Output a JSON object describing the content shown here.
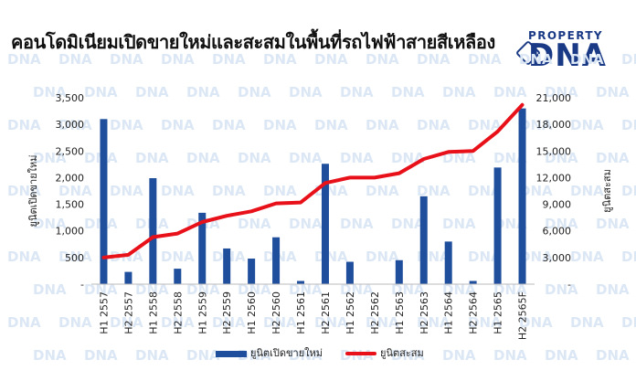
{
  "title": "คอนโดมิเนียมเปิดขายใหม่และสะสมในพื้นที่รถไฟฟ้าสายสีเหลือง",
  "logo": {
    "top": "PROPERTY",
    "main": "DNA"
  },
  "colors": {
    "bar": "#1f4e9c",
    "line": "#e8111a",
    "watermark": "#dce7f5"
  },
  "chart_data": {
    "type": "bar",
    "categories": [
      "H1 2557",
      "H2 2557",
      "H1 2558",
      "H2 2558",
      "H1 2559",
      "H2 2559",
      "H1 2560",
      "H2 2560",
      "H1 2561",
      "H2 2561",
      "H1 2562",
      "H2 2562",
      "H1 2563",
      "H2 2563",
      "H1 2564",
      "H2 2564",
      "H1 2565",
      "H2 2565F"
    ],
    "series": [
      {
        "name": "ยูนิตเปิดขายใหม่",
        "type": "bar",
        "axis": "left",
        "values": [
          3100,
          230,
          1990,
          290,
          1340,
          670,
          480,
          880,
          60,
          2260,
          420,
          0,
          450,
          1650,
          800,
          60,
          2190,
          3300
        ]
      },
      {
        "name": "ยูนิตสะสม",
        "type": "line",
        "axis": "right",
        "values": [
          3000,
          3300,
          5300,
          5700,
          7000,
          7700,
          8200,
          9100,
          9200,
          11400,
          12000,
          12000,
          12500,
          14100,
          14900,
          15000,
          17200,
          20200
        ]
      }
    ],
    "ylabel": "ยูนิตเปิดขายใหม่",
    "y2label": "ยูนิตสะสม",
    "ylim": [
      0,
      3500
    ],
    "y2lim": [
      0,
      21000
    ],
    "yticks": [
      "-",
      "500",
      "1,000",
      "1,500",
      "2,000",
      "2,500",
      "3,000",
      "3,500"
    ],
    "y2ticks": [
      "-",
      "3,000",
      "6,000",
      "9,000",
      "12,000",
      "15,000",
      "18,000",
      "21,000"
    ],
    "grid": false,
    "legend_position": "bottom"
  }
}
